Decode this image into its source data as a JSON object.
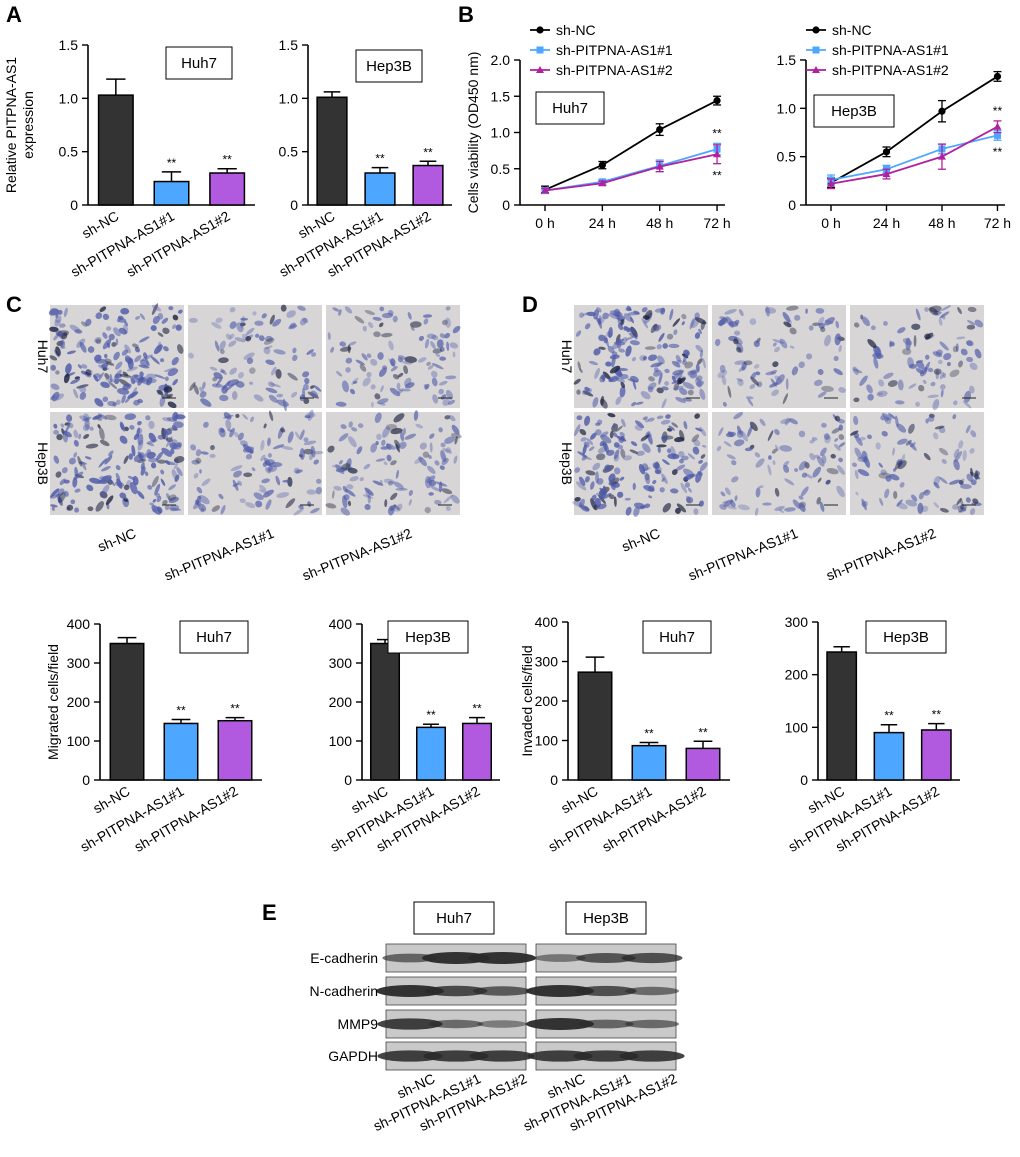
{
  "colors": {
    "sh_nc": "#333333",
    "sh1": "#4da6ff",
    "sh2": "#b15ae0",
    "line_nc": "#000000",
    "line_sh1": "#4da6ff",
    "line_sh2": "#b0219f",
    "micro_bg": "#d7d5d6",
    "micro_cell": "#4e5aa8",
    "blot_bg": "#c9c9c9",
    "band": "#2a2a2a"
  },
  "panels": {
    "A": "A",
    "B": "B",
    "C": "C",
    "D": "D",
    "E": "E"
  },
  "chart_data": [
    {
      "id": "A_huh7",
      "type": "bar",
      "panel": "A",
      "box_label": "Huh7",
      "ylabel": [
        "Relative PITPNA-AS1",
        "expression"
      ],
      "categories": [
        "sh-NC",
        "sh-PITPNA-AS1#1",
        "sh-PITPNA-AS1#2"
      ],
      "values": [
        1.03,
        0.22,
        0.3
      ],
      "errors": [
        0.15,
        0.09,
        0.04
      ],
      "annotations": [
        "",
        "**",
        "**"
      ],
      "ylim": [
        0,
        1.5
      ],
      "yticks": [
        0,
        0.5,
        1.0,
        1.5
      ],
      "ytick_labels": [
        "0",
        "0.5",
        "1.0",
        "1.5"
      ]
    },
    {
      "id": "A_hep3b",
      "type": "bar",
      "panel": "A",
      "box_label": "Hep3B",
      "ylabel": [],
      "categories": [
        "sh-NC",
        "sh-PITPNA-AS1#1",
        "sh-PITPNA-AS1#2"
      ],
      "values": [
        1.01,
        0.3,
        0.37
      ],
      "errors": [
        0.05,
        0.05,
        0.04
      ],
      "annotations": [
        "",
        "**",
        "**"
      ],
      "ylim": [
        0,
        1.5
      ],
      "yticks": [
        0,
        0.5,
        1.0,
        1.5
      ],
      "ytick_labels": [
        "0",
        "0.5",
        "1.0",
        "1.5"
      ]
    },
    {
      "id": "B_huh7",
      "type": "line",
      "panel": "B",
      "box_label": "Huh7",
      "ylabel": [
        "Cells viability (OD450 nm)"
      ],
      "x": [
        "0 h",
        "24 h",
        "48 h",
        "72 h"
      ],
      "series": [
        {
          "name": "sh-NC",
          "values": [
            0.21,
            0.55,
            1.04,
            1.44
          ],
          "errors": [
            0.05,
            0.05,
            0.08,
            0.06
          ]
        },
        {
          "name": "sh-PITPNA-AS1#1",
          "values": [
            0.2,
            0.32,
            0.54,
            0.77
          ],
          "errors": [
            0.03,
            0.03,
            0.08,
            0.08
          ]
        },
        {
          "name": "sh-PITPNA-AS1#2",
          "values": [
            0.2,
            0.3,
            0.53,
            0.7
          ],
          "errors": [
            0.03,
            0.03,
            0.07,
            0.13
          ]
        }
      ],
      "annotations": [
        {
          "x": "72 h",
          "text": "**",
          "pos": "above"
        },
        {
          "x": "72 h",
          "text": "**",
          "pos": "below"
        }
      ],
      "ylim": [
        0,
        2.0
      ],
      "yticks": [
        0,
        0.5,
        1.0,
        1.5,
        2.0
      ],
      "ytick_labels": [
        "0",
        "0.5",
        "1.0",
        "1.5",
        "2.0"
      ]
    },
    {
      "id": "B_hep3b",
      "type": "line",
      "panel": "B",
      "box_label": "Hep3B",
      "ylabel": [],
      "x": [
        "0 h",
        "24 h",
        "48 h",
        "72 h"
      ],
      "series": [
        {
          "name": "sh-NC",
          "values": [
            0.23,
            0.55,
            0.97,
            1.33
          ],
          "errors": [
            0.05,
            0.05,
            0.11,
            0.05
          ]
        },
        {
          "name": "sh-PITPNA-AS1#1",
          "values": [
            0.26,
            0.37,
            0.58,
            0.72
          ],
          "errors": [
            0.05,
            0.04,
            0.05,
            0.05
          ]
        },
        {
          "name": "sh-PITPNA-AS1#2",
          "values": [
            0.22,
            0.32,
            0.5,
            0.81
          ],
          "errors": [
            0.05,
            0.05,
            0.13,
            0.06
          ]
        }
      ],
      "annotations": [
        {
          "x": "72 h",
          "text": "**",
          "pos": "above"
        },
        {
          "x": "72 h",
          "text": "**",
          "pos": "below"
        }
      ],
      "ylim": [
        0,
        1.5
      ],
      "yticks": [
        0,
        0.5,
        1.0,
        1.5
      ],
      "ytick_labels": [
        "0",
        "0.5",
        "1.0",
        "1.5"
      ]
    },
    {
      "id": "C_huh7",
      "type": "bar",
      "panel": "C",
      "box_label": "Huh7",
      "ylabel": [
        "Migrated cells/field"
      ],
      "categories": [
        "sh-NC",
        "sh-PITPNA-AS1#1",
        "sh-PITPNA-AS1#2"
      ],
      "values": [
        350,
        145,
        152
      ],
      "errors": [
        15,
        10,
        8
      ],
      "annotations": [
        "",
        "**",
        "**"
      ],
      "ylim": [
        0,
        400
      ],
      "yticks": [
        0,
        100,
        200,
        300,
        400
      ],
      "ytick_labels": [
        "0",
        "100",
        "200",
        "300",
        "400"
      ]
    },
    {
      "id": "C_hep3b",
      "type": "bar",
      "panel": "C",
      "box_label": "Hep3B",
      "ylabel": [],
      "categories": [
        "sh-NC",
        "sh-PITPNA-AS1#1",
        "sh-PITPNA-AS1#2"
      ],
      "values": [
        350,
        135,
        145
      ],
      "errors": [
        10,
        8,
        15
      ],
      "annotations": [
        "",
        "**",
        "**"
      ],
      "ylim": [
        0,
        400
      ],
      "yticks": [
        0,
        100,
        200,
        300,
        400
      ],
      "ytick_labels": [
        "0",
        "100",
        "200",
        "300",
        "400"
      ]
    },
    {
      "id": "D_huh7",
      "type": "bar",
      "panel": "D",
      "box_label": "Huh7",
      "ylabel": [
        "Invaded cells/field"
      ],
      "categories": [
        "sh-NC",
        "sh-PITPNA-AS1#1",
        "sh-PITPNA-AS1#2"
      ],
      "values": [
        273,
        87,
        80
      ],
      "errors": [
        38,
        8,
        18
      ],
      "annotations": [
        "",
        "**",
        "**"
      ],
      "ylim": [
        0,
        400
      ],
      "yticks": [
        0,
        100,
        200,
        300,
        400
      ],
      "ytick_labels": [
        "0",
        "100",
        "200",
        "300",
        "400"
      ]
    },
    {
      "id": "D_hep3b",
      "type": "bar",
      "panel": "D",
      "box_label": "Hep3B",
      "ylabel": [],
      "categories": [
        "sh-NC",
        "sh-PITPNA-AS1#1",
        "sh-PITPNA-AS1#2"
      ],
      "values": [
        243,
        90,
        95
      ],
      "errors": [
        10,
        15,
        12
      ],
      "annotations": [
        "",
        "**",
        "**"
      ],
      "ylim": [
        0,
        300
      ],
      "yticks": [
        0,
        100,
        200,
        300
      ],
      "ytick_labels": [
        "0",
        "100",
        "200",
        "300"
      ]
    }
  ],
  "micrographs": {
    "C": {
      "rows": [
        "Huh7",
        "Hep3B"
      ],
      "columns": [
        "sh-NC",
        "sh-PITPNA-AS1#1",
        "sh-PITPNA-AS1#2"
      ]
    },
    "D": {
      "rows": [
        "Huh7",
        "Hep3B"
      ],
      "columns": [
        "sh-NC",
        "sh-PITPNA-AS1#1",
        "sh-PITPNA-AS1#2"
      ]
    }
  },
  "western_blot": {
    "groups": [
      "Huh7",
      "Hep3B"
    ],
    "proteins": [
      "E-cadherin",
      "N-cadherin",
      "MMP9",
      "GAPDH"
    ],
    "lanes": [
      "sh-NC",
      "sh-PITPNA-AS1#1",
      "sh-PITPNA-AS1#2"
    ],
    "intensity": {
      "Huh7": [
        [
          0.55,
          1.0,
          1.0
        ],
        [
          1.0,
          0.8,
          0.65
        ],
        [
          0.9,
          0.5,
          0.35
        ],
        [
          0.9,
          0.9,
          0.9
        ]
      ],
      "Hep3B": [
        [
          0.4,
          0.7,
          0.75
        ],
        [
          1.0,
          0.75,
          0.5
        ],
        [
          1.0,
          0.55,
          0.5
        ],
        [
          0.9,
          0.9,
          0.9
        ]
      ]
    }
  }
}
